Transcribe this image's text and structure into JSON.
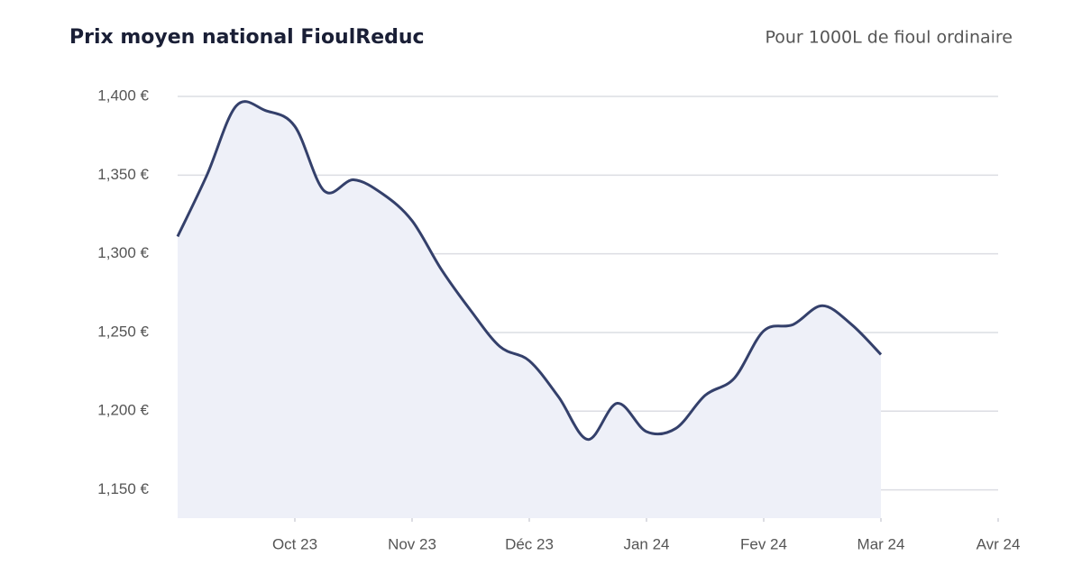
{
  "chart_data": {
    "type": "line",
    "title": "Prix moyen national FioulReduc",
    "subtitle": "Pour 1000L de fioul ordinaire",
    "categories": [
      null,
      null,
      null,
      null,
      "Oct 23",
      null,
      null,
      null,
      "Nov 23",
      null,
      null,
      null,
      "Déc 23",
      null,
      null,
      null,
      "Jan 24",
      null,
      null,
      null,
      "Fev 24",
      null,
      null,
      null,
      "Mar 24",
      null,
      null,
      null,
      "Avr 24"
    ],
    "values": [
      1311,
      1350,
      1394,
      1391,
      1381,
      1340,
      1347,
      1338,
      1321,
      1290,
      1264,
      1241,
      1232,
      1209,
      1182,
      1205,
      1187,
      1189,
      1210,
      1221,
      1251,
      1255,
      1267,
      1255,
      1236,
      null,
      null,
      null,
      null
    ],
    "color": "#34406b",
    "area_color": "#eef0f8",
    "ylim": [
      1132,
      1400
    ],
    "yticks": [
      {
        "value": 1150,
        "label": "1,150 €"
      },
      {
        "value": 1200,
        "label": "1,200 €"
      },
      {
        "value": 1250,
        "label": "1,250 €"
      },
      {
        "value": 1300,
        "label": "1,300 €"
      },
      {
        "value": 1350,
        "label": "1,350 €"
      },
      {
        "value": 1400,
        "label": "1,400 €"
      }
    ],
    "grid": true
  }
}
